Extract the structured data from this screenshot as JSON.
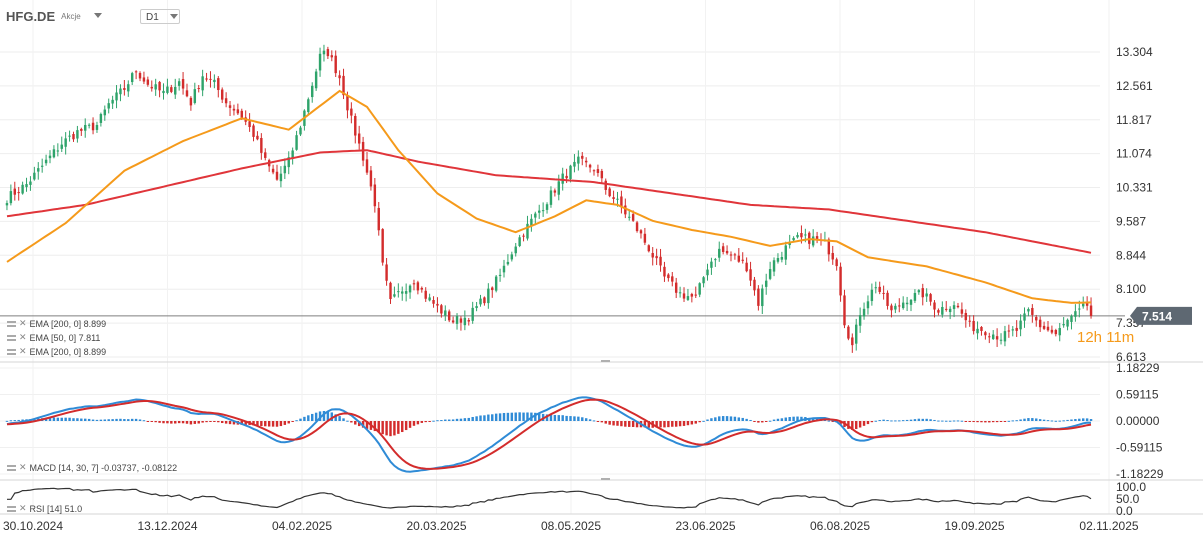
{
  "header": {
    "symbol": "HFG.DE",
    "type_label": "Akcje",
    "timeframe": "D1"
  },
  "price_tag": {
    "value": "7.514",
    "countdown": "12h 11m"
  },
  "overlays": [
    {
      "label": "EMA [200, 0] 8.899",
      "color": "#e0353a"
    },
    {
      "label": "EMA [50, 0] 7.811",
      "color": "#f59a1b"
    },
    {
      "label": "EMA [200, 0] 8.899",
      "color": "#e0353a"
    }
  ],
  "macd_label": "MACD [14, 30, 7] -0.03737, -0.08122",
  "rsi_label": "RSI [14] 51.0",
  "colors": {
    "up": "#2ea36a",
    "down": "#d32c2c",
    "ema200": "#e0353a",
    "ema50": "#f59a1b",
    "macd": "#2f8bd6",
    "signal": "#d32c2c",
    "hist_pos": "#2f8bd6",
    "hist_neg": "#d32c2c",
    "rsi": "#333333",
    "last_line": "#7f7f7f",
    "tag_bg": "#5e6872"
  },
  "chart_data": [
    {
      "type": "candlestick",
      "title": "HFG.DE",
      "y_ticks": [
        "13.304",
        "12.561",
        "11.817",
        "11.074",
        "10.331",
        "9.587",
        "8.844",
        "8.100",
        "7.357",
        "6.613"
      ],
      "ylim": [
        6.613,
        13.304
      ],
      "x_tick_labels": [
        "30.10.2024",
        "13.12.2024",
        "04.02.2025",
        "20.03.2025",
        "08.05.2025",
        "23.06.2025",
        "06.08.2025",
        "19.09.2025",
        "02.11.2025"
      ],
      "last_price": 7.514,
      "close_anchors": [
        [
          0,
          10.1
        ],
        [
          5,
          10.4
        ],
        [
          10,
          10.9
        ],
        [
          14,
          11.3
        ],
        [
          18,
          11.55
        ],
        [
          23,
          11.7
        ],
        [
          26,
          12.15
        ],
        [
          30,
          12.5
        ],
        [
          33,
          12.9
        ],
        [
          36,
          12.6
        ],
        [
          40,
          12.4
        ],
        [
          44,
          12.65
        ],
        [
          47,
          12.2
        ],
        [
          50,
          12.8
        ],
        [
          53,
          12.6
        ],
        [
          56,
          12.2
        ],
        [
          60,
          11.9
        ],
        [
          63,
          11.5
        ],
        [
          66,
          10.9
        ],
        [
          69,
          10.5
        ],
        [
          72,
          10.9
        ],
        [
          75,
          11.7
        ],
        [
          78,
          12.6
        ],
        [
          80,
          13.2
        ],
        [
          82,
          13.3
        ],
        [
          85,
          12.75
        ],
        [
          88,
          11.8
        ],
        [
          91,
          11.0
        ],
        [
          94,
          10.0
        ],
        [
          96,
          8.6
        ],
        [
          98,
          7.8
        ],
        [
          101,
          8.1
        ],
        [
          104,
          8.3
        ],
        [
          107,
          7.95
        ],
        [
          110,
          7.7
        ],
        [
          114,
          7.4
        ],
        [
          118,
          7.5
        ],
        [
          122,
          7.9
        ],
        [
          126,
          8.4
        ],
        [
          130,
          9.1
        ],
        [
          134,
          9.6
        ],
        [
          138,
          10.05
        ],
        [
          142,
          10.55
        ],
        [
          146,
          10.9
        ],
        [
          150,
          10.75
        ],
        [
          153,
          10.3
        ],
        [
          156,
          10.0
        ],
        [
          160,
          9.55
        ],
        [
          164,
          9.0
        ],
        [
          168,
          8.35
        ],
        [
          172,
          8.0
        ],
        [
          176,
          7.9
        ],
        [
          179,
          8.6
        ],
        [
          182,
          8.95
        ],
        [
          186,
          8.8
        ],
        [
          189,
          8.6
        ],
        [
          192,
          7.8
        ],
        [
          195,
          8.6
        ],
        [
          199,
          9.0
        ],
        [
          202,
          9.2
        ],
        [
          206,
          9.2
        ],
        [
          209,
          9.1
        ],
        [
          212,
          8.7
        ],
        [
          214,
          7.4
        ],
        [
          216,
          6.85
        ],
        [
          218,
          7.6
        ],
        [
          222,
          8.2
        ],
        [
          226,
          7.6
        ],
        [
          230,
          7.9
        ],
        [
          234,
          8.0
        ],
        [
          238,
          7.65
        ],
        [
          242,
          7.8
        ],
        [
          246,
          7.3
        ],
        [
          250,
          7.2
        ],
        [
          254,
          7.05
        ],
        [
          258,
          7.2
        ],
        [
          261,
          7.6
        ],
        [
          264,
          7.3
        ],
        [
          268,
          7.1
        ],
        [
          271,
          7.4
        ],
        [
          274,
          7.6
        ],
        [
          276,
          7.75
        ],
        [
          277,
          7.514
        ]
      ],
      "ema50_anchors": [
        [
          0,
          8.7
        ],
        [
          15,
          9.55
        ],
        [
          30,
          10.7
        ],
        [
          45,
          11.35
        ],
        [
          60,
          11.85
        ],
        [
          72,
          11.6
        ],
        [
          85,
          12.45
        ],
        [
          92,
          12.1
        ],
        [
          100,
          11.15
        ],
        [
          110,
          10.2
        ],
        [
          120,
          9.65
        ],
        [
          130,
          9.35
        ],
        [
          140,
          9.7
        ],
        [
          148,
          10.05
        ],
        [
          156,
          9.95
        ],
        [
          165,
          9.6
        ],
        [
          175,
          9.4
        ],
        [
          185,
          9.25
        ],
        [
          195,
          9.05
        ],
        [
          205,
          9.2
        ],
        [
          212,
          9.15
        ],
        [
          220,
          8.8
        ],
        [
          235,
          8.6
        ],
        [
          250,
          8.25
        ],
        [
          262,
          7.9
        ],
        [
          272,
          7.8
        ],
        [
          277,
          7.81
        ]
      ],
      "ema200_anchors": [
        [
          0,
          9.7
        ],
        [
          20,
          9.95
        ],
        [
          40,
          10.35
        ],
        [
          60,
          10.75
        ],
        [
          80,
          11.1
        ],
        [
          92,
          11.15
        ],
        [
          105,
          10.9
        ],
        [
          125,
          10.6
        ],
        [
          150,
          10.45
        ],
        [
          170,
          10.2
        ],
        [
          190,
          9.95
        ],
        [
          210,
          9.85
        ],
        [
          230,
          9.6
        ],
        [
          250,
          9.35
        ],
        [
          265,
          9.1
        ],
        [
          277,
          8.9
        ]
      ],
      "series": [
        {
          "name": "EMA [50, 0]",
          "last": 7.811
        },
        {
          "name": "EMA [200, 0]",
          "last": 8.899
        }
      ]
    },
    {
      "type": "macd",
      "title": "MACD [14, 30, 7]",
      "y_ticks": [
        "1.18229",
        "0.59115",
        "0.00000",
        "-0.59115",
        "-1.18229"
      ],
      "ylim": [
        -1.18229,
        1.18229
      ],
      "last_macd": -0.03737,
      "last_signal": -0.08122
    },
    {
      "type": "line",
      "title": "RSI [14]",
      "y_ticks": [
        "100.0",
        "50.0",
        "0.0"
      ],
      "ylim": [
        0,
        100
      ],
      "last": 51.0
    }
  ]
}
